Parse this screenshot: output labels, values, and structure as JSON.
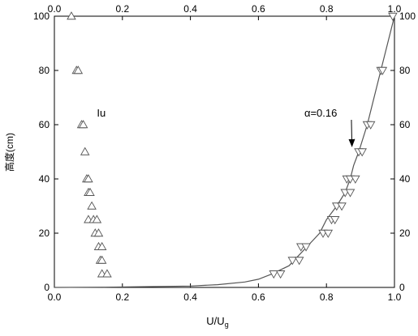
{
  "chart_data": {
    "type": "scatter",
    "xlabel": "U/U",
    "xlabel_subscript": "g",
    "ylabel": "高度(cm)",
    "xlim": [
      0.0,
      1.0
    ],
    "ylim": [
      0,
      100
    ],
    "x_ticks": [
      "0.0",
      "0.2",
      "0.4",
      "0.6",
      "0.8",
      "1.0"
    ],
    "y_ticks": [
      "0",
      "20",
      "40",
      "60",
      "80",
      "100"
    ],
    "ticks_mirrored": true,
    "grid": false,
    "series": [
      {
        "marker": "triangle-up",
        "points": [
          [
            0.05,
            100
          ],
          [
            0.065,
            80
          ],
          [
            0.07,
            80
          ],
          [
            0.08,
            60
          ],
          [
            0.085,
            60
          ],
          [
            0.09,
            50
          ],
          [
            0.095,
            40
          ],
          [
            0.1,
            40
          ],
          [
            0.1,
            35
          ],
          [
            0.105,
            35
          ],
          [
            0.11,
            30
          ],
          [
            0.1,
            25
          ],
          [
            0.115,
            25
          ],
          [
            0.125,
            25
          ],
          [
            0.12,
            20
          ],
          [
            0.13,
            20
          ],
          [
            0.13,
            15
          ],
          [
            0.14,
            15
          ],
          [
            0.135,
            10
          ],
          [
            0.14,
            10
          ],
          [
            0.14,
            5
          ],
          [
            0.155,
            5
          ]
        ]
      },
      {
        "marker": "triangle-down",
        "points": [
          [
            0.995,
            100
          ],
          [
            0.96,
            80
          ],
          [
            0.965,
            80
          ],
          [
            0.92,
            60
          ],
          [
            0.93,
            60
          ],
          [
            0.895,
            50
          ],
          [
            0.905,
            50
          ],
          [
            0.86,
            40
          ],
          [
            0.87,
            40
          ],
          [
            0.885,
            40
          ],
          [
            0.855,
            35
          ],
          [
            0.87,
            35
          ],
          [
            0.83,
            30
          ],
          [
            0.845,
            30
          ],
          [
            0.815,
            25
          ],
          [
            0.825,
            25
          ],
          [
            0.79,
            20
          ],
          [
            0.805,
            20
          ],
          [
            0.725,
            15
          ],
          [
            0.74,
            15
          ],
          [
            0.7,
            10
          ],
          [
            0.72,
            10
          ],
          [
            0.645,
            5
          ],
          [
            0.665,
            5
          ]
        ]
      }
    ],
    "fit_curve": {
      "points": [
        [
          0.0,
          0
        ],
        [
          0.15,
          0.1
        ],
        [
          0.4,
          0.5
        ],
        [
          0.48,
          1
        ],
        [
          0.56,
          2
        ],
        [
          0.6,
          3
        ],
        [
          0.64,
          5
        ],
        [
          0.69,
          8
        ],
        [
          0.72,
          12
        ],
        [
          0.75,
          16
        ],
        [
          0.78,
          20
        ],
        [
          0.8,
          25
        ],
        [
          0.83,
          30
        ],
        [
          0.855,
          35
        ],
        [
          0.87,
          40
        ],
        [
          0.88,
          45
        ],
        [
          0.895,
          50
        ],
        [
          0.92,
          60
        ],
        [
          0.96,
          80
        ],
        [
          1.0,
          100
        ]
      ]
    },
    "annotations": [
      {
        "text": "Iu",
        "x": 0.125,
        "y": 63
      },
      {
        "text": "α=0.16",
        "x": 0.735,
        "y": 63,
        "arrow_to": [
          0.875,
          52
        ]
      }
    ]
  }
}
